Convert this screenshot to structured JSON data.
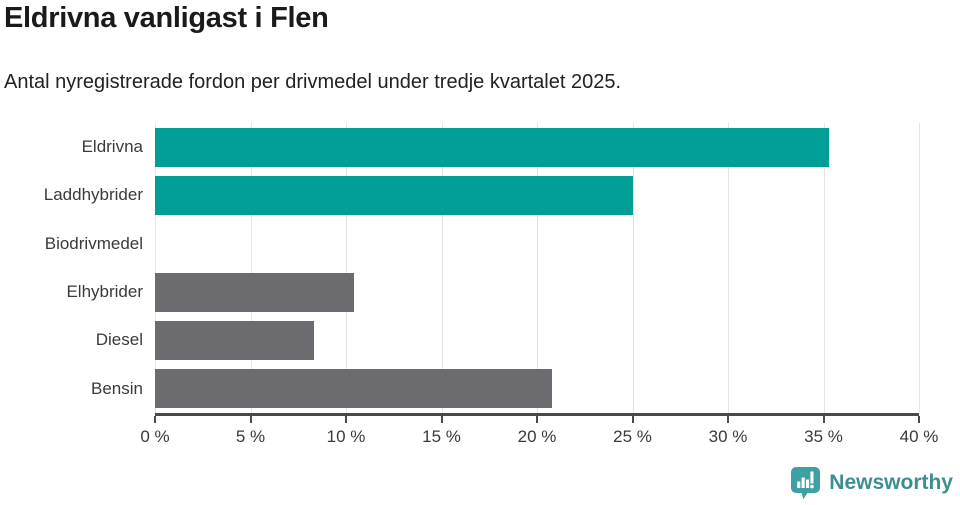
{
  "chart_data": {
    "type": "bar",
    "orientation": "horizontal",
    "title": "Eldrivna vanligast i Flen",
    "subtitle": "Antal nyregistrerade fordon per drivmedel under tredje kvartalet 2025.",
    "categories": [
      "Eldrivna",
      "Laddhybrider",
      "Biodrivmedel",
      "Elhybrider",
      "Diesel",
      "Bensin"
    ],
    "values": [
      35.3,
      25.0,
      0,
      10.4,
      8.3,
      20.8
    ],
    "unit": "%",
    "xlim": [
      0,
      40
    ],
    "xtick_values": [
      0,
      5,
      10,
      15,
      20,
      25,
      30,
      35,
      40
    ],
    "xtick_labels": [
      "0 %",
      "5 %",
      "10 %",
      "15 %",
      "20 %",
      "25 %",
      "30 %",
      "35 %",
      "40 %"
    ],
    "bar_colors": [
      "#009e96",
      "#009e96",
      "#6c6c70",
      "#6c6c70",
      "#6c6c70",
      "#6c6c70"
    ],
    "highlight_color": "#009e96",
    "default_color": "#6c6c70",
    "gridline_color": "#e4e4e4",
    "axis_color": "#4a4a4d",
    "grid": true,
    "legend": false
  },
  "footer": {
    "brand": "Newsworthy",
    "brand_color": "#3d8e90",
    "logo_icon": "newsworthy-speech-bubble-bar-chart-icon"
  }
}
